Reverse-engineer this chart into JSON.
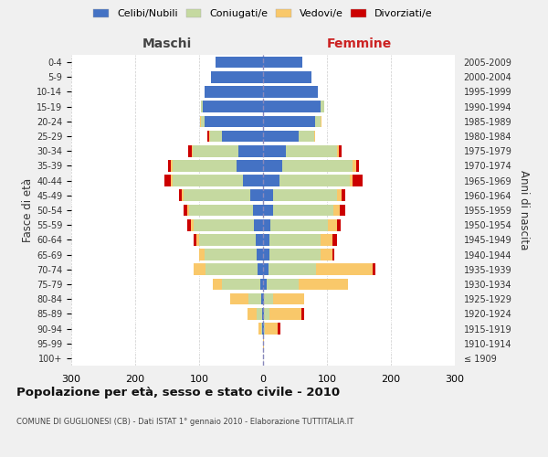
{
  "age_groups": [
    "100+",
    "95-99",
    "90-94",
    "85-89",
    "80-84",
    "75-79",
    "70-74",
    "65-69",
    "60-64",
    "55-59",
    "50-54",
    "45-49",
    "40-44",
    "35-39",
    "30-34",
    "25-29",
    "20-24",
    "15-19",
    "10-14",
    "5-9",
    "0-4"
  ],
  "birth_years": [
    "≤ 1909",
    "1910-1914",
    "1915-1919",
    "1920-1924",
    "1925-1929",
    "1930-1934",
    "1935-1939",
    "1940-1944",
    "1945-1949",
    "1950-1954",
    "1955-1959",
    "1960-1964",
    "1965-1969",
    "1970-1974",
    "1975-1979",
    "1980-1984",
    "1985-1989",
    "1990-1994",
    "1995-1999",
    "2000-2004",
    "2005-2009"
  ],
  "maschi": {
    "celibi": [
      0,
      0,
      1,
      2,
      3,
      5,
      8,
      10,
      12,
      14,
      16,
      20,
      32,
      42,
      38,
      65,
      92,
      95,
      92,
      82,
      75
    ],
    "coniugati": [
      0,
      0,
      2,
      8,
      20,
      60,
      82,
      82,
      88,
      95,
      100,
      105,
      110,
      100,
      72,
      18,
      5,
      2,
      0,
      0,
      0
    ],
    "vedovi": [
      0,
      0,
      4,
      15,
      28,
      14,
      18,
      8,
      4,
      4,
      3,
      2,
      2,
      2,
      2,
      2,
      2,
      0,
      0,
      0,
      0
    ],
    "divorziati": [
      0,
      0,
      0,
      0,
      0,
      0,
      0,
      0,
      5,
      5,
      5,
      5,
      10,
      5,
      5,
      2,
      0,
      0,
      0,
      0,
      0
    ]
  },
  "femmine": {
    "nubili": [
      0,
      0,
      1,
      2,
      2,
      5,
      8,
      10,
      10,
      12,
      15,
      15,
      25,
      30,
      35,
      55,
      82,
      90,
      85,
      75,
      62
    ],
    "coniugate": [
      0,
      0,
      2,
      8,
      14,
      50,
      75,
      80,
      80,
      90,
      95,
      100,
      110,
      110,
      80,
      25,
      8,
      5,
      0,
      0,
      0
    ],
    "vedove": [
      0,
      2,
      20,
      50,
      48,
      78,
      88,
      18,
      18,
      14,
      10,
      8,
      5,
      5,
      3,
      2,
      2,
      0,
      0,
      0,
      0
    ],
    "divorziate": [
      0,
      0,
      4,
      4,
      0,
      0,
      4,
      4,
      8,
      5,
      8,
      5,
      15,
      5,
      5,
      0,
      0,
      0,
      0,
      0,
      0
    ]
  },
  "colors": {
    "celibi_nubili": "#4472C4",
    "coniugati": "#C5D9A0",
    "vedovi": "#F9C86A",
    "divorziati": "#CC0000"
  },
  "title": "Popolazione per età, sesso e stato civile - 2010",
  "subtitle": "COMUNE DI GUGLIONESI (CB) - Dati ISTAT 1° gennaio 2010 - Elaborazione TUTTITALIA.IT",
  "label_maschi": "Maschi",
  "label_femmine": "Femmine",
  "ylabel_left": "Fasce di età",
  "ylabel_right": "Anni di nascita",
  "xlim": 300,
  "background_color": "#f0f0f0",
  "plot_bg": "#ffffff",
  "legend_labels": [
    "Celibi/Nubili",
    "Coniugati/e",
    "Vedovi/e",
    "Divorziati/e"
  ]
}
